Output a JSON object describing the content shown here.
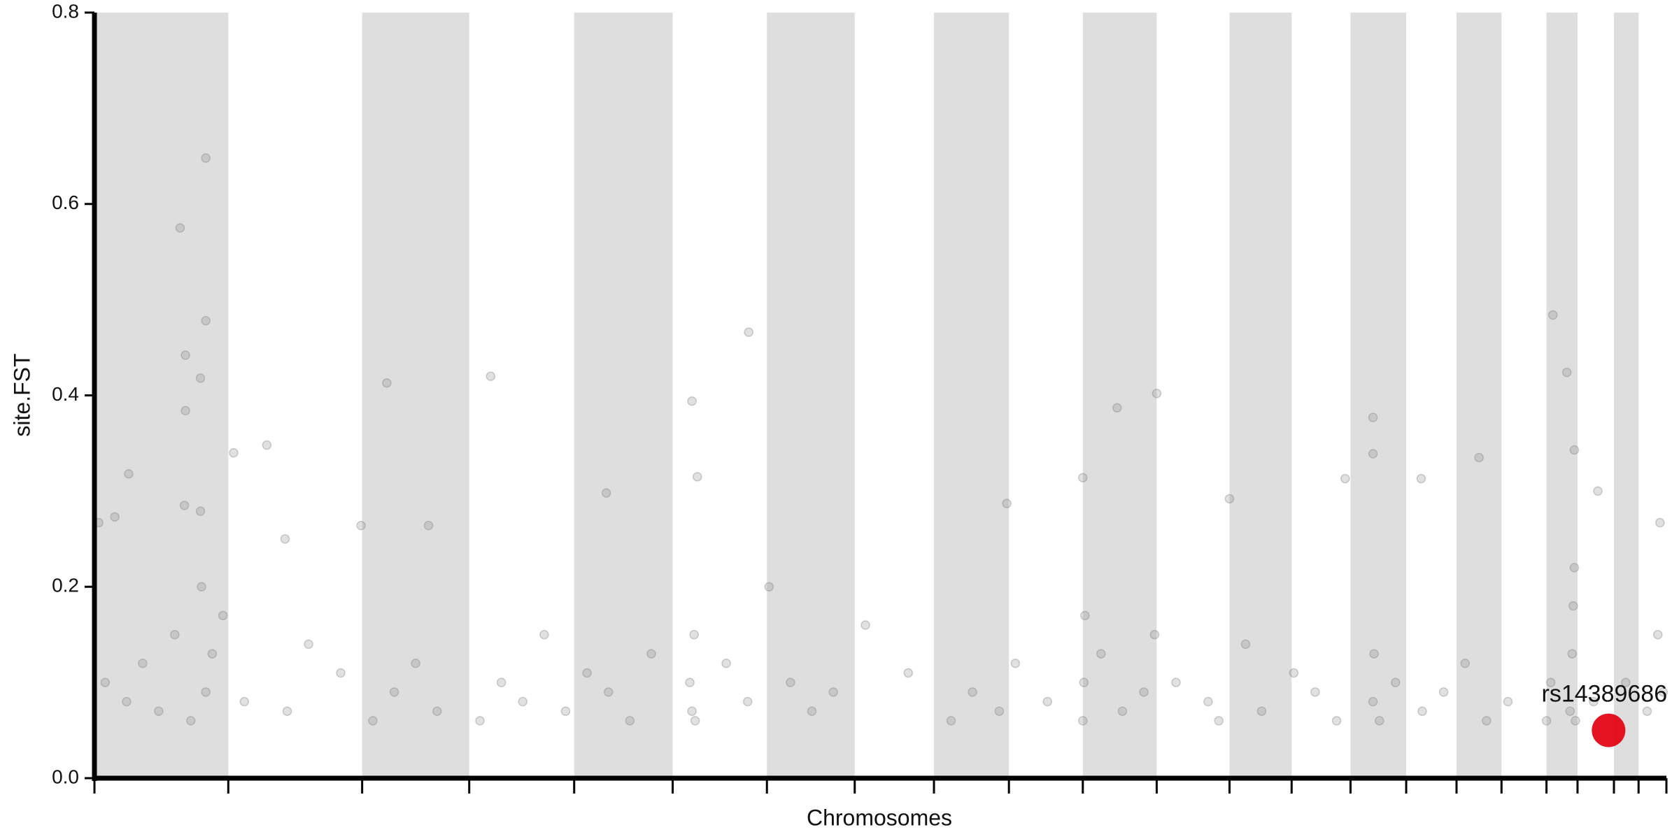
{
  "chart_data": {
    "type": "scatter",
    "xlabel": "Chromosomes",
    "ylabel": "site.FST",
    "xlim": [
      0,
      1468
    ],
    "ylim": [
      0,
      0.8
    ],
    "xticks": [
      0,
      125,
      250,
      350,
      448,
      540,
      628,
      710,
      784,
      854,
      923,
      992,
      1060,
      1118,
      1173,
      1225,
      1272,
      1314,
      1356,
      1385,
      1419,
      1442,
      1468
    ],
    "yticks": [
      {
        "value": 0,
        "label": "0.0"
      },
      0.2,
      0.4,
      0.6,
      0.8
    ],
    "band_color": "#dedede",
    "series": [
      {
        "color": "#777777",
        "x": [
          80,
          104,
          104,
          85,
          99,
          85,
          84,
          99,
          32,
          4,
          19,
          130,
          161,
          273,
          370,
          611,
          558,
          563,
          992,
          955,
          1362,
          1375,
          1194,
          1194,
          1293,
          1404,
          1462,
          923,
          852,
          478,
          312,
          249,
          178,
          1060,
          1239,
          1168,
          1382,
          10,
          30,
          45,
          60,
          75,
          90,
          100,
          104,
          110,
          120,
          140,
          180,
          200,
          230,
          260,
          280,
          300,
          320,
          360,
          380,
          400,
          420,
          440,
          460,
          480,
          500,
          520,
          556,
          558,
          560,
          561,
          590,
          610,
          630,
          650,
          670,
          690,
          720,
          760,
          800,
          820,
          845,
          860,
          890,
          923,
          924,
          925,
          940,
          960,
          980,
          990,
          1010,
          1040,
          1050,
          1075,
          1090,
          1120,
          1140,
          1160,
          1194,
          1195,
          1200,
          1215,
          1240,
          1260,
          1280,
          1300,
          1320,
          1356,
          1360,
          1378,
          1380,
          1381,
          1382,
          1383,
          1400,
          1430,
          1450,
          1460,
          1465
        ],
        "values": [
          0.575,
          0.648,
          0.478,
          0.442,
          0.418,
          0.384,
          0.285,
          0.279,
          0.318,
          0.267,
          0.273,
          0.34,
          0.348,
          0.413,
          0.42,
          0.466,
          0.394,
          0.315,
          0.402,
          0.387,
          0.484,
          0.424,
          0.377,
          0.339,
          0.335,
          0.3,
          0.267,
          0.314,
          0.287,
          0.298,
          0.264,
          0.264,
          0.25,
          0.292,
          0.313,
          0.313,
          0.343,
          0.1,
          0.08,
          0.12,
          0.07,
          0.15,
          0.06,
          0.2,
          0.09,
          0.13,
          0.17,
          0.08,
          0.07,
          0.14,
          0.11,
          0.06,
          0.09,
          0.12,
          0.07,
          0.06,
          0.1,
          0.08,
          0.15,
          0.07,
          0.11,
          0.09,
          0.06,
          0.13,
          0.1,
          0.07,
          0.15,
          0.06,
          0.12,
          0.08,
          0.2,
          0.1,
          0.07,
          0.09,
          0.16,
          0.11,
          0.06,
          0.09,
          0.07,
          0.12,
          0.08,
          0.06,
          0.1,
          0.17,
          0.13,
          0.07,
          0.09,
          0.15,
          0.1,
          0.08,
          0.06,
          0.14,
          0.07,
          0.11,
          0.09,
          0.06,
          0.08,
          0.13,
          0.06,
          0.1,
          0.07,
          0.09,
          0.12,
          0.06,
          0.08,
          0.06,
          0.1,
          0.07,
          0.13,
          0.18,
          0.22,
          0.06,
          0.08,
          0.1,
          0.07,
          0.15,
          0.09
        ]
      }
    ],
    "annotations": [
      {
        "text": "rs14389686",
        "x": 1414,
        "y": 0.05,
        "color": "#e3000f"
      }
    ]
  }
}
